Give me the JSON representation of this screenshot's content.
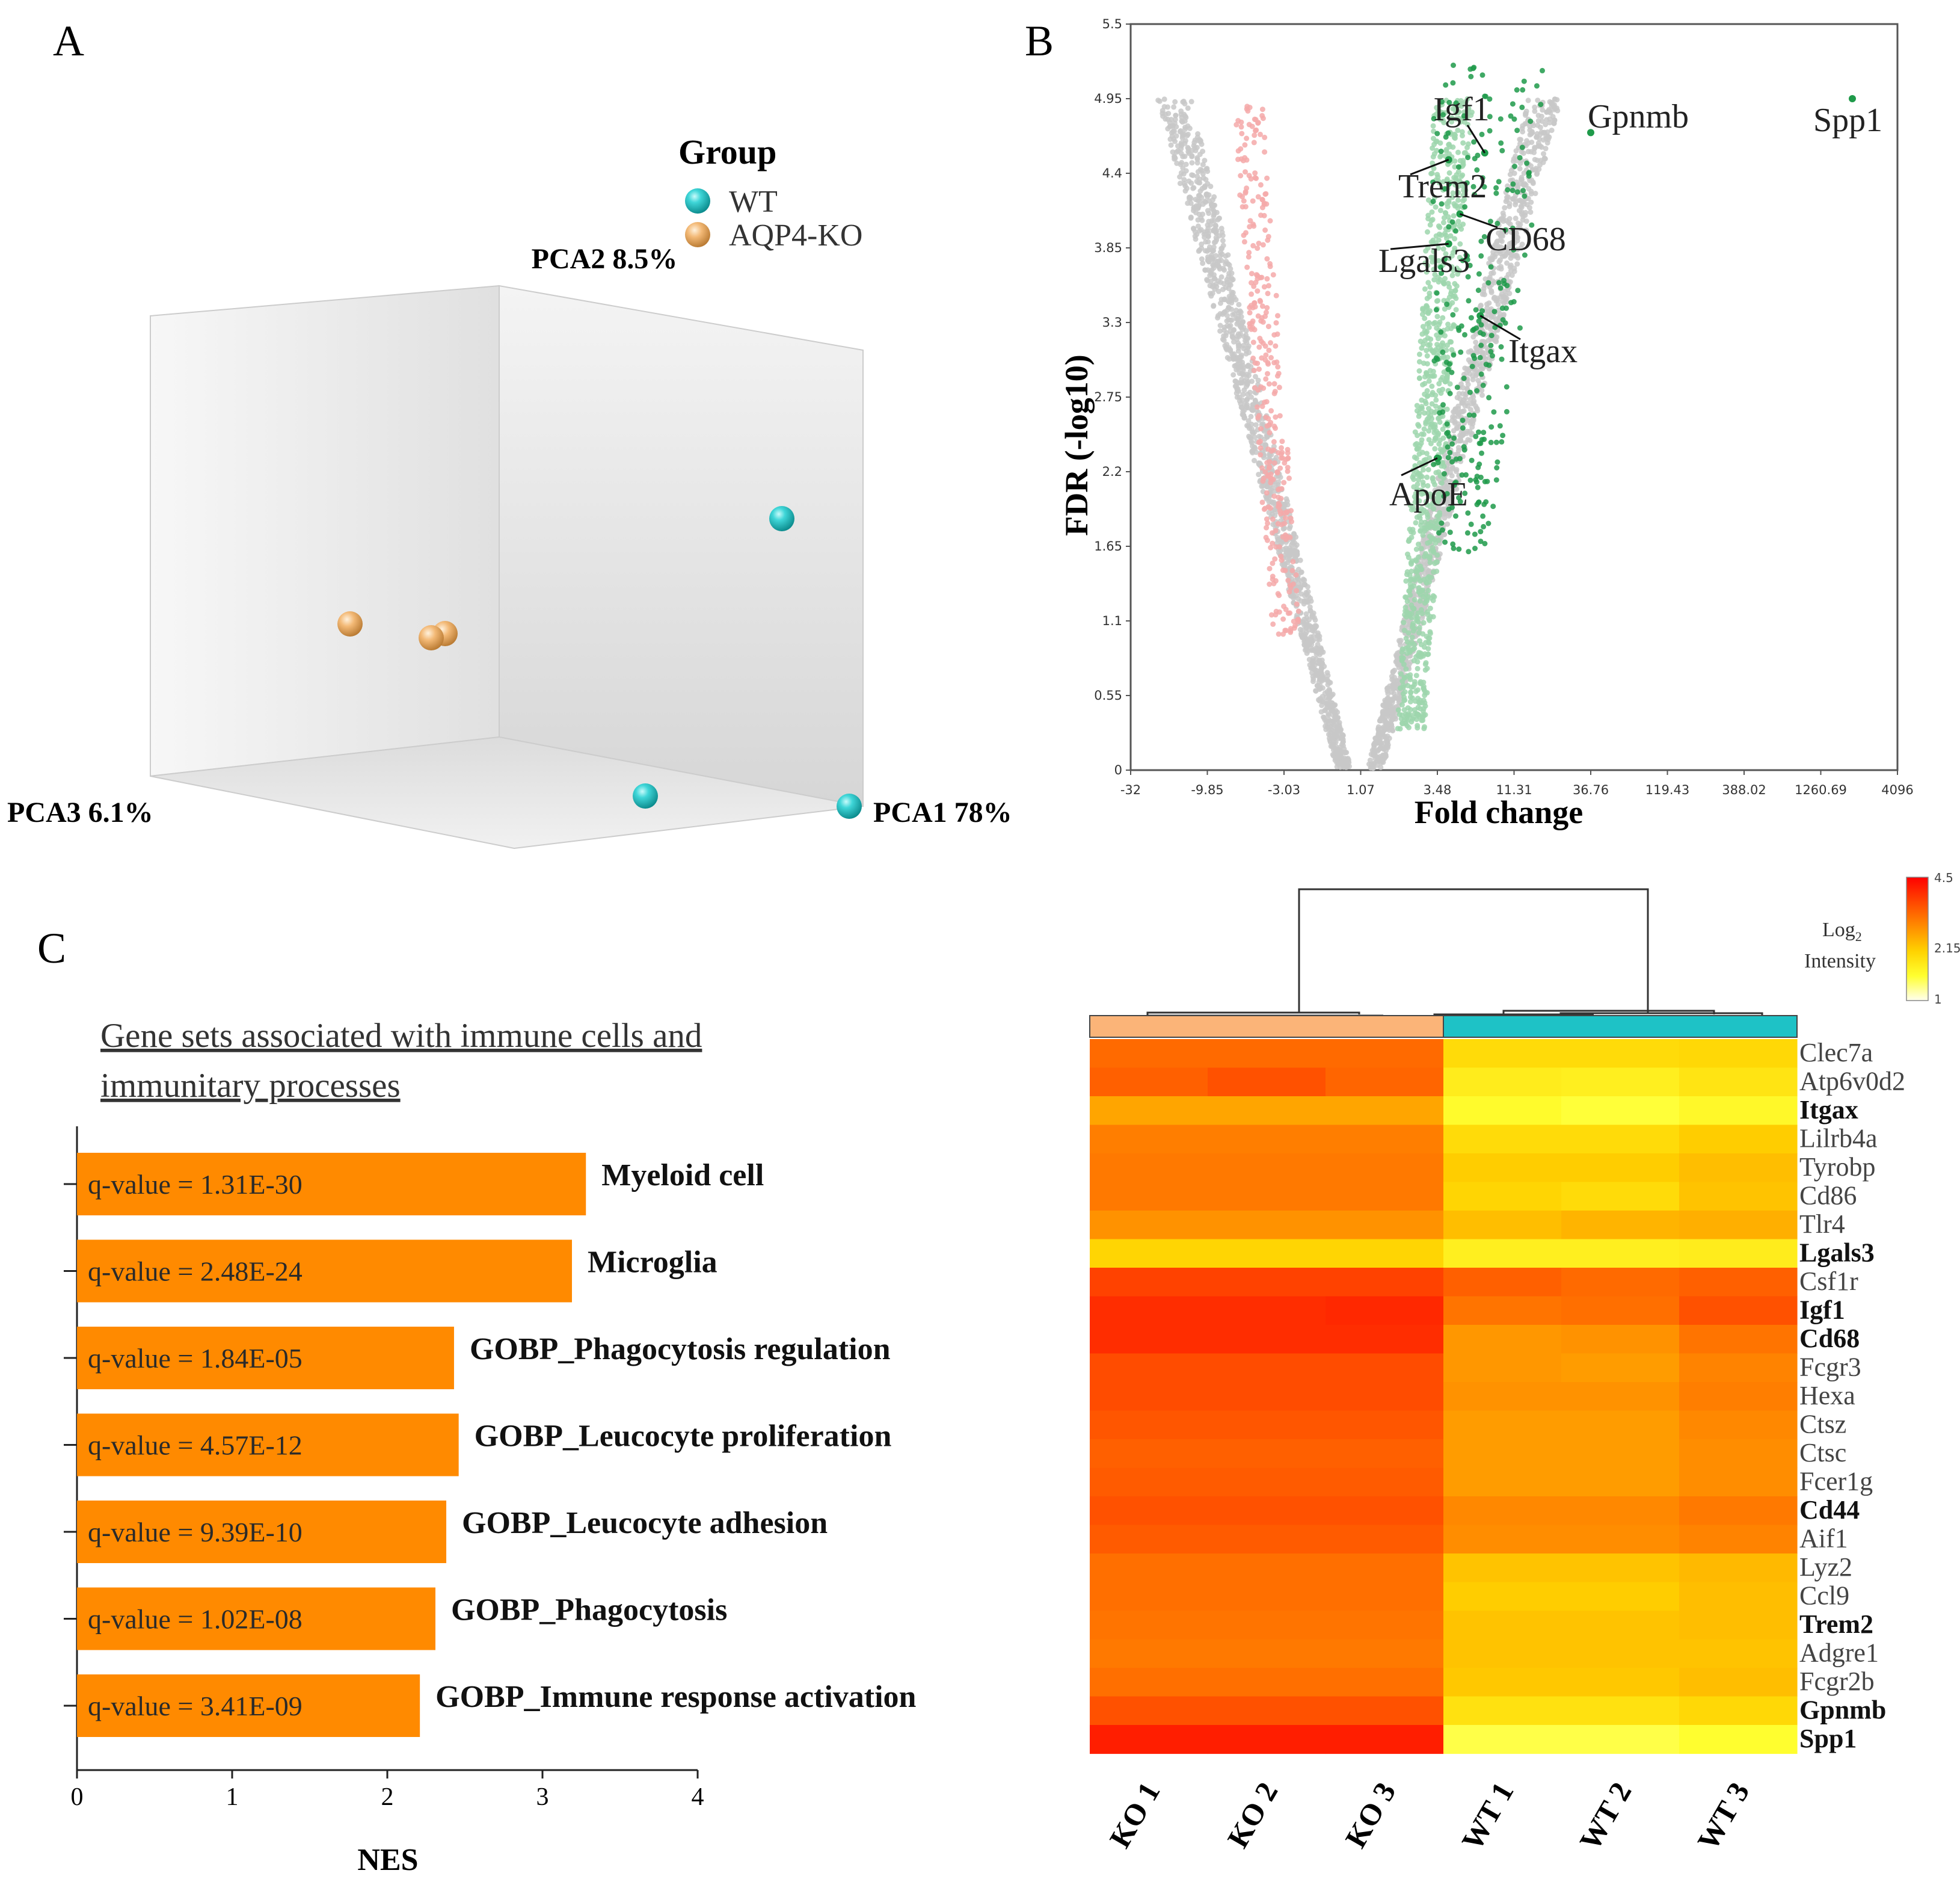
{
  "panels": {
    "a": "A",
    "b": "B",
    "c": "C"
  },
  "colors": {
    "wt": "#1fc1c3",
    "ko": "#f2b36c",
    "up": "#1f9a4a",
    "down": "#e06a6a",
    "ns": "#c8c8c8",
    "bar": "#ff8a00",
    "heat_low": "#ffff66",
    "heat_mid": "#ffcc00",
    "heat_high": "#ff2a00"
  },
  "chart_data": [
    {
      "id": "pca",
      "type": "scatter",
      "title": "",
      "legend_title": "Group",
      "legend": [
        "WT",
        "AQP4-KO"
      ],
      "axes": {
        "x": "PCA1 78%",
        "y": "PCA2 8.5%",
        "z": "PCA3 6.1%"
      },
      "series": [
        {
          "name": "WT",
          "points": [
            [
              0.78,
              0.55,
              0.3
            ],
            [
              1.0,
              0.04,
              0.12
            ],
            [
              0.62,
              0.06,
              0.05
            ]
          ]
        },
        {
          "name": "AQP4-KO",
          "points": [
            [
              -0.55,
              0.22,
              0.05
            ],
            [
              -0.36,
              0.2,
              0.07
            ],
            [
              -0.34,
              0.21,
              0.08
            ]
          ]
        }
      ]
    },
    {
      "id": "volcano",
      "type": "scatter",
      "title": "",
      "xlabel": "Fold change",
      "ylabel": "FDR (-log10)",
      "xticks": [
        "-32",
        "-9.85",
        "-3.03",
        "1.07",
        "3.48",
        "11.31",
        "36.76",
        "119.43",
        "388.02",
        "1260.69",
        "4096"
      ],
      "yticks": [
        "0",
        "0.55",
        "1.1",
        "1.65",
        "2.2",
        "2.75",
        "3.3",
        "3.85",
        "4.4",
        "4.95",
        "5.5"
      ],
      "ylim": [
        0,
        5.5
      ],
      "labeled_points": [
        {
          "label": "Igf1",
          "log2fc": 2.85,
          "fdr": 4.55
        },
        {
          "label": "Gpnmb",
          "log2fc": 5.2,
          "fdr": 4.7
        },
        {
          "label": "Spp1",
          "log2fc": 11.0,
          "fdr": 4.95
        },
        {
          "label": "Trem2",
          "log2fc": 2.05,
          "fdr": 4.5
        },
        {
          "label": "CD68",
          "log2fc": 2.3,
          "fdr": 4.1
        },
        {
          "label": "Lgals3",
          "log2fc": 2.05,
          "fdr": 3.88
        },
        {
          "label": "Itgax",
          "log2fc": 2.75,
          "fdr": 3.35
        },
        {
          "label": "ApoE",
          "log2fc": 1.8,
          "fdr": 2.3
        }
      ]
    },
    {
      "id": "nes",
      "type": "bar",
      "orientation": "horizontal",
      "title": "Gene sets associated with immune cells and immunitary processes",
      "title_lines": [
        "Gene sets associated with immune cells and",
        "immunitary processes"
      ],
      "xlabel": "NES",
      "xlim": [
        0,
        4
      ],
      "xticks": [
        "0",
        "1",
        "2",
        "3",
        "4"
      ],
      "categories": [
        "Myeloid cell",
        "Microglia",
        "GOBP_Phagocytosis regulation",
        "GOBP_Leucocyte proliferation",
        "GOBP_Leucocyte adhesion",
        "GOBP_Phagocytosis",
        "GOBP_Immune response activation"
      ],
      "values": [
        3.28,
        3.19,
        2.43,
        2.46,
        2.38,
        2.31,
        2.21
      ],
      "labels": [
        "q-value = 1.31E-30",
        "q-value = 2.48E-24",
        "q-value = 1.84E-05",
        "q-value = 4.57E-12",
        "q-value = 9.39E-10",
        "q-value = 1.02E-08",
        "q-value = 3.41E-09"
      ]
    },
    {
      "id": "heatmap",
      "type": "heatmap",
      "legend_title_1": "Log",
      "legend_title_sub": "2",
      "legend_title_2": "Intensity",
      "colorbar_ticks": [
        "4.5",
        "2.15",
        "1"
      ],
      "columns": [
        "KO 1",
        "KO 2",
        "KO 3",
        "WT 1",
        "WT 2",
        "WT 3"
      ],
      "rows": [
        "Clec7a",
        "Atp6v0d2",
        "Itgax",
        "Lilrb4a",
        "Tyrobp",
        "Cd86",
        "Tlr4",
        "Lgals3",
        "Csf1r",
        "Igf1",
        "Cd68",
        "Fcgr3",
        "Hexa",
        "Ctsz",
        "Ctsc",
        "Fcer1g",
        "Cd44",
        "Aif1",
        "Lyz2",
        "Ccl9",
        "Trem2",
        "Adgre1",
        "Fcgr2b",
        "Gpnmb",
        "Spp1"
      ],
      "bold_rows": [
        "Itgax",
        "Lgals3",
        "Igf1",
        "Cd68",
        "Cd44",
        "Trem2",
        "Gpnmb",
        "Spp1"
      ],
      "values": [
        [
          3.45,
          3.45,
          3.45,
          2.25,
          2.25,
          2.3
        ],
        [
          3.55,
          3.7,
          3.5,
          1.95,
          1.9,
          2.1
        ],
        [
          2.85,
          2.85,
          2.85,
          1.7,
          1.6,
          1.75
        ],
        [
          3.25,
          3.25,
          3.25,
          2.25,
          2.25,
          2.45
        ],
        [
          3.3,
          3.3,
          3.3,
          2.45,
          2.45,
          2.6
        ],
        [
          3.3,
          3.3,
          3.3,
          2.35,
          2.25,
          2.55
        ],
        [
          3.05,
          3.05,
          3.05,
          2.6,
          2.7,
          2.75
        ],
        [
          2.35,
          2.35,
          2.35,
          1.9,
          1.9,
          1.95
        ],
        [
          3.85,
          3.85,
          3.85,
          3.55,
          3.45,
          3.55
        ],
        [
          4.05,
          4.05,
          4.1,
          3.35,
          3.4,
          3.7
        ],
        [
          4.05,
          4.05,
          4.05,
          3.0,
          3.05,
          3.35
        ],
        [
          3.75,
          3.75,
          3.75,
          3.0,
          2.95,
          3.2
        ],
        [
          3.75,
          3.75,
          3.75,
          3.05,
          3.05,
          3.25
        ],
        [
          3.65,
          3.65,
          3.65,
          2.95,
          2.95,
          3.15
        ],
        [
          3.55,
          3.55,
          3.55,
          2.95,
          2.95,
          3.1
        ],
        [
          3.6,
          3.6,
          3.6,
          2.95,
          2.95,
          3.1
        ],
        [
          3.7,
          3.7,
          3.7,
          3.15,
          3.15,
          3.3
        ],
        [
          3.6,
          3.6,
          3.6,
          3.1,
          3.1,
          3.2
        ],
        [
          3.4,
          3.4,
          3.4,
          2.55,
          2.55,
          2.65
        ],
        [
          3.4,
          3.4,
          3.4,
          2.45,
          2.45,
          2.6
        ],
        [
          3.35,
          3.35,
          3.35,
          2.55,
          2.55,
          2.6
        ],
        [
          3.3,
          3.3,
          3.3,
          2.55,
          2.55,
          2.55
        ],
        [
          3.4,
          3.4,
          3.4,
          2.5,
          2.5,
          2.6
        ],
        [
          3.7,
          3.7,
          3.7,
          2.15,
          2.15,
          2.3
        ],
        [
          4.2,
          4.2,
          4.2,
          1.55,
          1.55,
          1.65
        ]
      ]
    }
  ]
}
